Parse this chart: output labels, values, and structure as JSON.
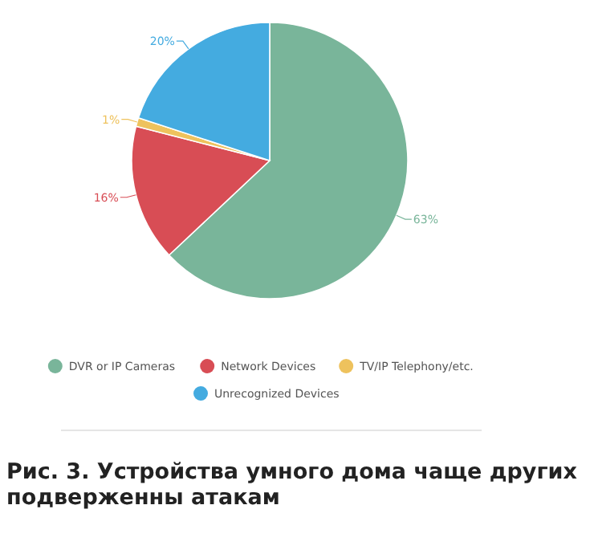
{
  "chart_data": {
    "type": "pie",
    "categories": [
      "DVR or IP Cameras",
      "Network Devices",
      "TV/IP Telephony/etc.",
      "Unrecognized Devices"
    ],
    "values": [
      63,
      16,
      1,
      20
    ],
    "colors": [
      "#79b59a",
      "#d84d55",
      "#eec25d",
      "#44abe0"
    ],
    "value_labels": [
      "63%",
      "16%",
      "1%",
      "20%"
    ],
    "legend": "bottom",
    "annotations": [
      "Рис. 3. Устройства умного дома чаще других подверженны атакам"
    ]
  }
}
